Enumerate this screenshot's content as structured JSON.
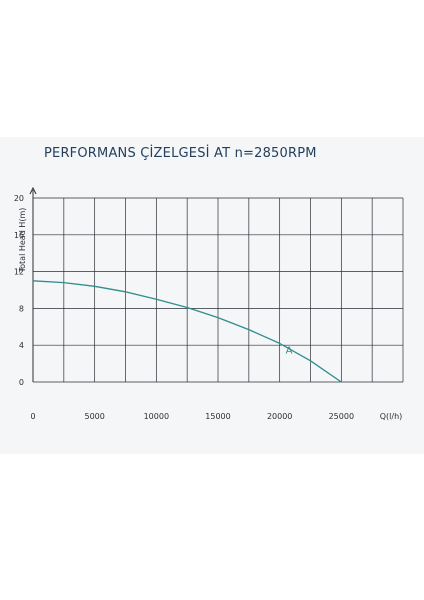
{
  "page": {
    "title": "PERFORMANS ÇİZELGESİ  AT n=2850RPM"
  },
  "colors": {
    "panel_background": "#f4f6f7",
    "title": "#24405e",
    "grid": "#2b2f36",
    "curve": "#2f8e8b"
  },
  "chart_data": {
    "type": "line",
    "title": "PERFORMANS ÇİZELGESİ  AT n=2850RPM",
    "xlabel": "Q(l/h)",
    "ylabel": "Total Head H(m)",
    "xlim": [
      0,
      30000
    ],
    "ylim": [
      0,
      20
    ],
    "x_ticks": [
      "0",
      "5000",
      "10000",
      "15000",
      "20000",
      "25000"
    ],
    "y_ticks": [
      "0",
      "4",
      "8",
      "12",
      "16",
      "20"
    ],
    "grid": true,
    "series": [
      {
        "name": "A",
        "x": [
          0,
          2500,
          5000,
          7500,
          10000,
          12500,
          15000,
          17500,
          20000,
          22500,
          25000
        ],
        "y": [
          11.0,
          10.8,
          10.4,
          9.8,
          9.0,
          8.1,
          7.0,
          5.7,
          4.2,
          2.3,
          0.0
        ]
      }
    ]
  }
}
